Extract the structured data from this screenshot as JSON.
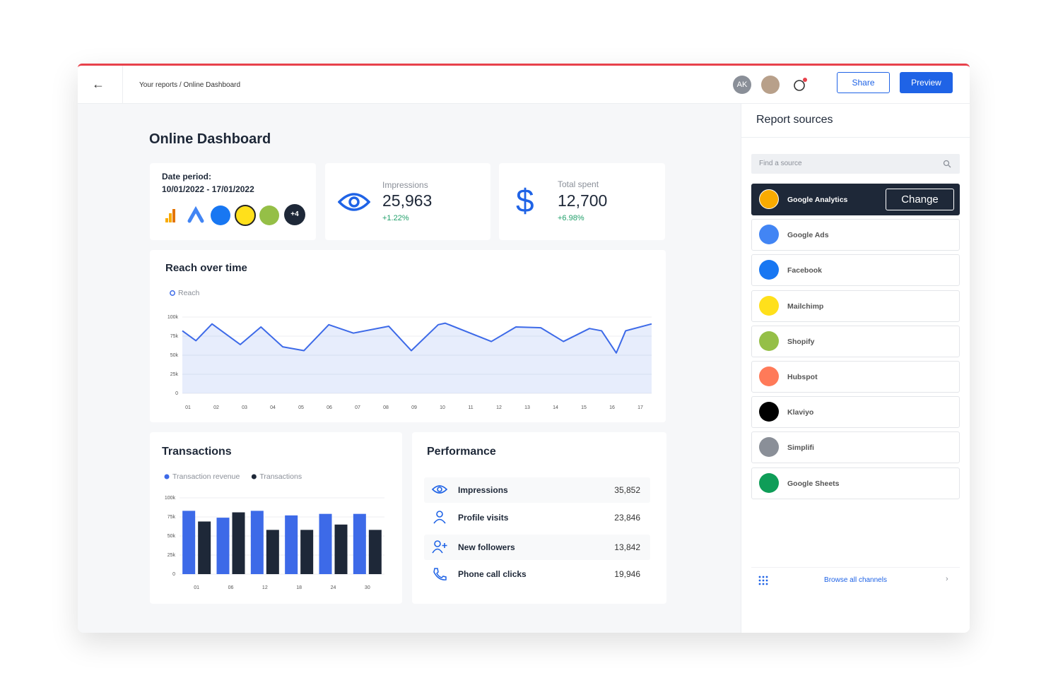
{
  "header": {
    "breadcrumb": "Your reports / Online Dashboard",
    "avatar": "AK",
    "share": "Share",
    "preview": "Preview"
  },
  "title": "Online Dashboard",
  "date_card": {
    "label": "Date period:",
    "range": "10/01/2022 - 17/01/2022",
    "more": "+4"
  },
  "kpis": [
    {
      "label": "Impressions",
      "value": "25,963",
      "change": "+1.22%"
    },
    {
      "label": "Total spent",
      "value": "12,700",
      "change": "+6.98%"
    }
  ],
  "chart_data": [
    {
      "type": "line",
      "title": "Reach over time",
      "x": [
        0.8,
        1.28,
        1.85,
        2.85,
        3.58,
        4.35,
        5.1,
        5.98,
        6.85,
        8.1,
        8.9,
        9.85,
        10.1,
        11.73,
        12.6,
        13.48,
        14.28,
        15.2,
        15.63,
        16.15,
        16.48,
        17.4
      ],
      "series": [
        {
          "name": "Reach",
          "color": "#3d6ae8",
          "values": [
            82000,
            69000,
            91000,
            64000,
            87000,
            61000,
            56000,
            90000,
            79000,
            88000,
            56000,
            90000,
            92000,
            68000,
            87000,
            86000,
            68000,
            85000,
            82000,
            53000,
            82000,
            91000
          ]
        }
      ],
      "xlim": [
        0.8,
        17.4
      ],
      "xticks": [
        {
          "value": 1,
          "label": "01"
        },
        {
          "value": 2,
          "label": "02"
        },
        {
          "value": 3,
          "label": "03"
        },
        {
          "value": 4,
          "label": "04"
        },
        {
          "value": 5,
          "label": "05"
        },
        {
          "value": 6,
          "label": "06"
        },
        {
          "value": 7,
          "label": "07"
        },
        {
          "value": 8,
          "label": "08"
        },
        {
          "value": 9,
          "label": "09"
        },
        10,
        11,
        12,
        13,
        14,
        15,
        16,
        17
      ],
      "ylim": [
        0,
        100000
      ],
      "yticks": [
        0,
        {
          "value": 25000,
          "label": "25k"
        },
        {
          "value": 50000,
          "label": "50k"
        },
        {
          "value": 75000,
          "label": "75k"
        },
        {
          "value": 100000,
          "label": "100k"
        }
      ],
      "grid": true
    },
    {
      "type": "bar",
      "title": "Transactions",
      "categories": [
        "01",
        "06",
        "12",
        "18",
        "24",
        "30"
      ],
      "series": [
        {
          "name": "Transaction revenue",
          "color": "#3d6ae8",
          "values": [
            83000,
            74000,
            83000,
            77000,
            79000,
            79000
          ]
        },
        {
          "name": "Transactions",
          "color": "#1e2838",
          "values": [
            69000,
            81000,
            58000,
            58000,
            65000,
            58000
          ]
        }
      ],
      "ylim": [
        0,
        100000
      ],
      "yticks": [
        0,
        {
          "value": 25000,
          "label": "25k"
        },
        {
          "value": 50000,
          "label": "50k"
        },
        {
          "value": 75000,
          "label": "75k"
        },
        {
          "value": 100000,
          "label": "100k"
        }
      ],
      "grid": true
    }
  ],
  "performance": {
    "title": "Performance",
    "rows": [
      [
        "Impressions",
        "35,852"
      ],
      [
        "Profile visits",
        "23,846"
      ],
      [
        "New followers",
        "13,842"
      ],
      [
        "Phone call clicks",
        "19,946"
      ]
    ]
  },
  "sources": {
    "title": "Report sources",
    "search": "Find a source",
    "change": "Change",
    "browse": "Browse all channels",
    "items": [
      "Google Analytics",
      "Google Ads",
      "Facebook",
      "Mailchimp",
      "Shopify",
      "Hubspot",
      "Klaviyo",
      "Simplifi",
      "Google Sheets"
    ]
  }
}
